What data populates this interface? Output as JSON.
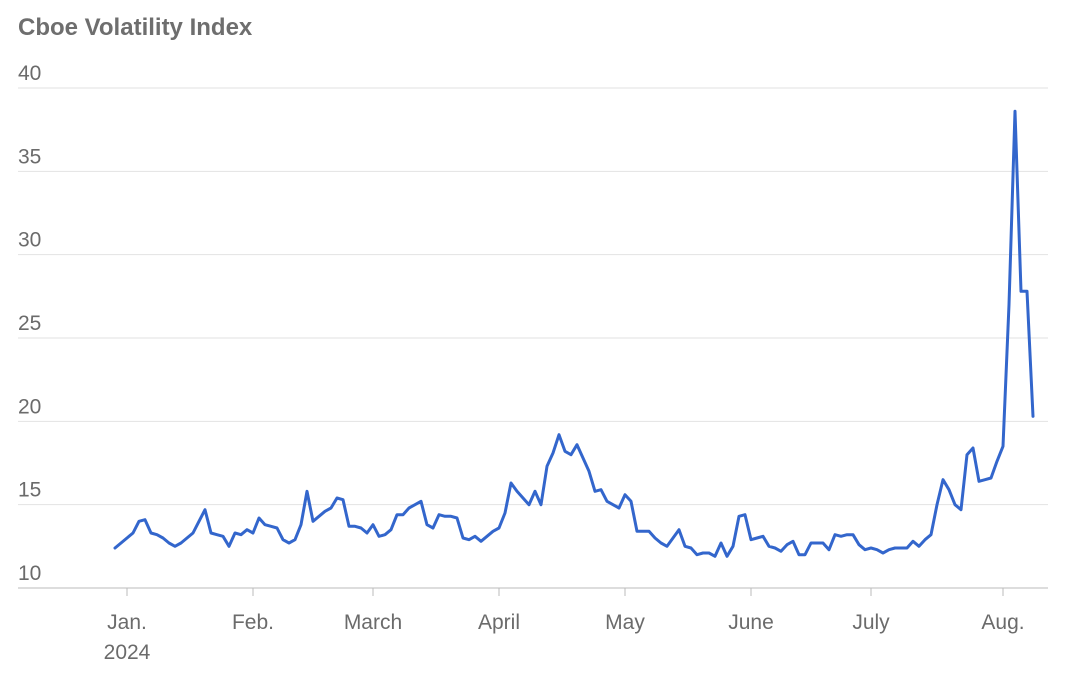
{
  "chart_data": {
    "type": "line",
    "title": "Cboe Volatility Index",
    "categories": [
      null,
      null,
      "Jan. 2024",
      null,
      null,
      null,
      null,
      null,
      null,
      null,
      null,
      null,
      null,
      null,
      null,
      null,
      null,
      null,
      null,
      null,
      null,
      null,
      null,
      "Feb.",
      null,
      null,
      null,
      null,
      null,
      null,
      null,
      null,
      null,
      null,
      null,
      null,
      null,
      null,
      null,
      null,
      null,
      null,
      null,
      "March",
      null,
      null,
      null,
      null,
      null,
      null,
      null,
      null,
      null,
      null,
      null,
      null,
      null,
      null,
      null,
      null,
      null,
      null,
      null,
      null,
      "April",
      null,
      null,
      null,
      null,
      null,
      null,
      null,
      null,
      null,
      null,
      null,
      null,
      null,
      null,
      null,
      null,
      null,
      null,
      null,
      null,
      "May",
      null,
      null,
      null,
      null,
      null,
      null,
      null,
      null,
      null,
      null,
      null,
      null,
      null,
      null,
      null,
      null,
      null,
      null,
      null,
      null,
      "June",
      null,
      null,
      null,
      null,
      null,
      null,
      null,
      null,
      null,
      null,
      null,
      null,
      null,
      null,
      null,
      null,
      null,
      null,
      null,
      "July",
      null,
      null,
      null,
      null,
      null,
      null,
      null,
      null,
      null,
      null,
      null,
      null,
      null,
      null,
      null,
      null,
      null,
      null,
      null,
      null,
      null,
      "Aug.",
      null,
      null,
      null,
      null,
      null
    ],
    "series": [
      {
        "name": "Cboe Volatility Index",
        "color": "#3366cc",
        "values": [
          12.4,
          12.7,
          13.0,
          13.3,
          14.0,
          14.1,
          13.3,
          13.2,
          13.0,
          12.7,
          12.5,
          12.7,
          13.0,
          13.3,
          14.0,
          14.7,
          13.3,
          13.2,
          13.1,
          12.5,
          13.3,
          13.2,
          13.5,
          13.3,
          14.2,
          13.8,
          13.7,
          13.6,
          12.9,
          12.7,
          12.9,
          13.8,
          15.8,
          14.0,
          14.3,
          14.6,
          14.8,
          15.4,
          15.3,
          13.7,
          13.7,
          13.6,
          13.3,
          13.8,
          13.1,
          13.2,
          13.5,
          14.4,
          14.4,
          14.8,
          15.0,
          15.2,
          13.8,
          13.6,
          14.4,
          14.3,
          14.3,
          14.2,
          13.0,
          12.9,
          13.1,
          12.8,
          13.1,
          13.4,
          13.6,
          14.5,
          16.3,
          15.8,
          15.4,
          15.0,
          15.8,
          15.0,
          17.3,
          18.1,
          19.2,
          18.2,
          18.0,
          18.6,
          17.8,
          17.0,
          15.8,
          15.9,
          15.2,
          15.0,
          14.8,
          15.6,
          15.2,
          13.4,
          13.4,
          13.4,
          13.0,
          12.7,
          12.5,
          13.0,
          13.5,
          12.5,
          12.4,
          12.0,
          12.1,
          12.1,
          11.9,
          12.7,
          11.9,
          12.5,
          14.3,
          14.4,
          12.9,
          13.0,
          13.1,
          12.5,
          12.4,
          12.2,
          12.6,
          12.8,
          12.0,
          12.0,
          12.7,
          12.7,
          12.7,
          12.3,
          13.2,
          13.1,
          13.2,
          13.2,
          12.6,
          12.3,
          12.4,
          12.3,
          12.1,
          12.3,
          12.4,
          12.4,
          12.4,
          12.8,
          12.5,
          12.9,
          13.2,
          15.0,
          16.5,
          15.9,
          15.0,
          14.7,
          18.0,
          18.4,
          16.4,
          16.5,
          16.6,
          17.6,
          18.5,
          27.0,
          38.6,
          27.8,
          27.8,
          20.3
        ]
      }
    ],
    "ylim": [
      10,
      40
    ],
    "yticks": [
      10,
      15,
      20,
      25,
      30,
      35,
      40
    ],
    "grid": true
  }
}
